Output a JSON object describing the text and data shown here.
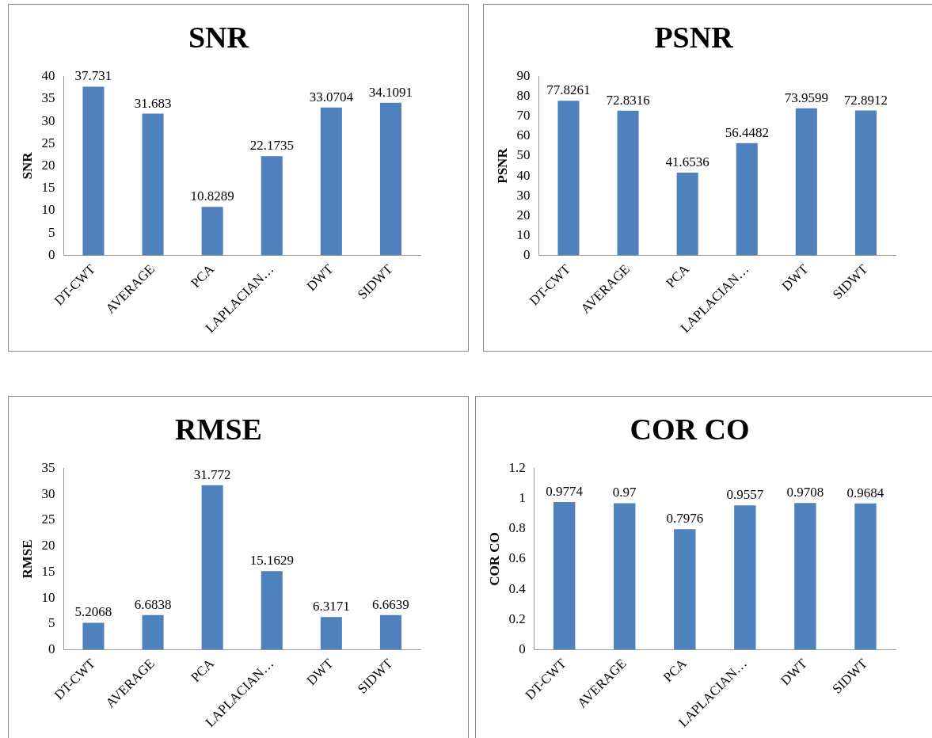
{
  "chart_data": [
    {
      "type": "bar",
      "title": "SNR",
      "ylabel": "SNR",
      "categories": [
        "DT-CWT",
        "AVERAGE",
        "PCA",
        "LAPLACIAN…",
        "DWT",
        "SIDWT"
      ],
      "values": [
        37.731,
        31.683,
        10.8289,
        22.1735,
        33.0704,
        34.1091
      ],
      "color": "#4f81bd",
      "ylim": [
        0,
        40
      ],
      "yticks": [
        0,
        5,
        10,
        15,
        20,
        25,
        30,
        35,
        40
      ],
      "grid": false,
      "legend": false,
      "data_labels": true
    },
    {
      "type": "bar",
      "title": "PSNR",
      "ylabel": "PSNR",
      "categories": [
        "DT-CWT",
        "AVERAGE",
        "PCA",
        "LAPLACIAN…",
        "DWT",
        "SIDWT"
      ],
      "values": [
        77.8261,
        72.8316,
        41.6536,
        56.4482,
        73.9599,
        72.8912
      ],
      "color": "#4f81bd",
      "ylim": [
        0,
        90
      ],
      "yticks": [
        0,
        10,
        20,
        30,
        40,
        50,
        60,
        70,
        80,
        90
      ],
      "grid": false,
      "legend": false,
      "data_labels": true
    },
    {
      "type": "bar",
      "title": "RMSE",
      "ylabel": "RMSE",
      "categories": [
        "DT-CWT",
        "AVERAGE",
        "PCA",
        "LAPLACIAN…",
        "DWT",
        "SIDWT"
      ],
      "values": [
        5.2068,
        6.6838,
        31.772,
        15.1629,
        6.3171,
        6.6639
      ],
      "color": "#4f81bd",
      "ylim": [
        0,
        35
      ],
      "yticks": [
        0,
        5,
        10,
        15,
        20,
        25,
        30,
        35
      ],
      "grid": false,
      "legend": false,
      "data_labels": true
    },
    {
      "type": "bar",
      "title": "COR CO",
      "ylabel": "COR CO",
      "categories": [
        "DT-CWT",
        "AVERAGE",
        "PCA",
        "LAPLACIAN…",
        "DWT",
        "SIDWT"
      ],
      "values": [
        0.9774,
        0.97,
        0.7976,
        0.9557,
        0.9708,
        0.9684
      ],
      "color": "#4f81bd",
      "ylim": [
        0,
        1.2
      ],
      "yticks": [
        0,
        0.2,
        0.4,
        0.6,
        0.8,
        1,
        1.2
      ],
      "grid": false,
      "legend": false,
      "data_labels": true
    }
  ]
}
